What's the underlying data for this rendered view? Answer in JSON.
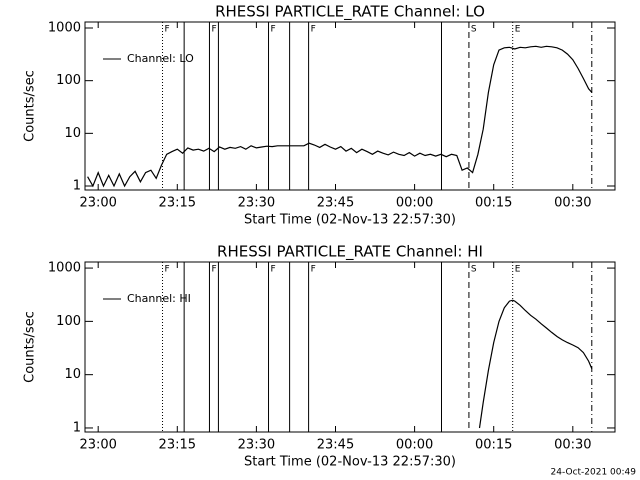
{
  "chart_data": [
    {
      "type": "line",
      "title": "RHESSI PARTICLE_RATE Channel: LO",
      "xlabel": "Start Time (02-Nov-13 22:57:30)",
      "ylabel": "Counts/sec",
      "log_y": true,
      "legend": "upper left",
      "xlim": [
        1377.5,
        1478
      ],
      "ylim": [
        0.84,
        1300
      ],
      "xticks": [
        {
          "value": 1380,
          "label": "23:00"
        },
        {
          "value": 1395,
          "label": "23:15"
        },
        {
          "value": 1410,
          "label": "23:30"
        },
        {
          "value": 1425,
          "label": "23:45"
        },
        {
          "value": 1440,
          "label": "00:00"
        },
        {
          "value": 1455,
          "label": "00:15"
        },
        {
          "value": 1470,
          "label": "00:30"
        }
      ],
      "yticks": [
        1,
        10,
        100,
        1000
      ],
      "vlines": [
        {
          "x": 1392.2,
          "style": "dotted",
          "label": "F"
        },
        {
          "x": 1396.3,
          "style": "solid"
        },
        {
          "x": 1401.1,
          "style": "solid",
          "label": "F"
        },
        {
          "x": 1402.8,
          "style": "solid"
        },
        {
          "x": 1412.3,
          "style": "solid",
          "label": "F"
        },
        {
          "x": 1416.3,
          "style": "solid"
        },
        {
          "x": 1419.9,
          "style": "solid",
          "label": "F"
        },
        {
          "x": 1445.1,
          "style": "solid"
        },
        {
          "x": 1450.3,
          "style": "dashed",
          "label": "S"
        },
        {
          "x": 1458.6,
          "style": "dotted",
          "label": "E"
        },
        {
          "x": 1473.6,
          "style": "dashdot"
        }
      ],
      "series": [
        {
          "name": "Channel: LO",
          "color": "#000000",
          "x": [
            1378,
            1379,
            1380,
            1381,
            1382,
            1383,
            1384,
            1385,
            1386,
            1387,
            1388,
            1389,
            1390,
            1391,
            1392,
            1393,
            1394,
            1395,
            1396,
            1397,
            1398,
            1399,
            1400,
            1401,
            1402,
            1403,
            1404,
            1405,
            1406,
            1407,
            1408,
            1409,
            1410,
            1411,
            1412,
            1413,
            1414,
            1415,
            1416,
            1417,
            1418,
            1419,
            1420,
            1421,
            1422,
            1423,
            1424,
            1425,
            1426,
            1427,
            1428,
            1429,
            1430,
            1431,
            1432,
            1433,
            1434,
            1435,
            1436,
            1437,
            1438,
            1439,
            1440,
            1441,
            1442,
            1443,
            1444,
            1445,
            1446,
            1447,
            1448,
            1449,
            1450,
            1451,
            1452,
            1453,
            1454,
            1455,
            1456,
            1457,
            1458,
            1459,
            1460,
            1461,
            1462,
            1463,
            1464,
            1465,
            1466,
            1467,
            1468,
            1469,
            1470,
            1471,
            1472,
            1473,
            1473.6
          ],
          "values": [
            1.5,
            1,
            1.8,
            1,
            1.6,
            1,
            1.7,
            1,
            1.5,
            1.9,
            1.2,
            1.8,
            2,
            1.4,
            2.5,
            4,
            4.5,
            5,
            4.2,
            5.3,
            4.8,
            5,
            4.6,
            5.2,
            4.5,
            5.5,
            5,
            5.4,
            5.2,
            5.6,
            5,
            5.8,
            5.3,
            5.5,
            5.7,
            5.6,
            5.8,
            5.8,
            5.8,
            5.8,
            5.8,
            5.8,
            6.5,
            6,
            5.4,
            6.2,
            5.5,
            5,
            5.6,
            4.6,
            5.2,
            4.3,
            5,
            4.5,
            4,
            4.6,
            4.2,
            3.9,
            4.4,
            4,
            3.8,
            4.3,
            3.7,
            4.2,
            3.8,
            4,
            3.7,
            4,
            3.6,
            4,
            3.8,
            2,
            2.2,
            1.8,
            4,
            12,
            60,
            200,
            380,
            420,
            430,
            400,
            430,
            420,
            440,
            450,
            430,
            450,
            440,
            420,
            380,
            320,
            250,
            170,
            110,
            70,
            60
          ]
        }
      ]
    },
    {
      "type": "line",
      "title": "RHESSI PARTICLE_RATE Channel: HI",
      "xlabel": "Start Time (02-Nov-13 22:57:30)",
      "ylabel": "Counts/sec",
      "log_y": true,
      "legend": "upper left",
      "xlim": [
        1377.5,
        1478
      ],
      "ylim": [
        0.84,
        1300
      ],
      "xticks": [
        {
          "value": 1380,
          "label": "23:00"
        },
        {
          "value": 1395,
          "label": "23:15"
        },
        {
          "value": 1410,
          "label": "23:30"
        },
        {
          "value": 1425,
          "label": "23:45"
        },
        {
          "value": 1440,
          "label": "00:00"
        },
        {
          "value": 1455,
          "label": "00:15"
        },
        {
          "value": 1470,
          "label": "00:30"
        }
      ],
      "yticks": [
        1,
        10,
        100,
        1000
      ],
      "vlines": [
        {
          "x": 1392.2,
          "style": "dotted",
          "label": "F"
        },
        {
          "x": 1396.3,
          "style": "solid"
        },
        {
          "x": 1401.1,
          "style": "solid",
          "label": "F"
        },
        {
          "x": 1402.8,
          "style": "solid"
        },
        {
          "x": 1412.3,
          "style": "solid",
          "label": "F"
        },
        {
          "x": 1416.3,
          "style": "solid"
        },
        {
          "x": 1419.9,
          "style": "solid",
          "label": "F"
        },
        {
          "x": 1445.1,
          "style": "solid"
        },
        {
          "x": 1450.3,
          "style": "dashed",
          "label": "S"
        },
        {
          "x": 1458.6,
          "style": "dotted",
          "label": "E"
        },
        {
          "x": 1473.6,
          "style": "dashdot"
        }
      ],
      "series": [
        {
          "name": "Channel: HI",
          "color": "#000000",
          "x": [
            1452.3,
            1453,
            1454,
            1455,
            1456,
            1457,
            1458,
            1458.6,
            1459,
            1460,
            1461,
            1462,
            1463,
            1464,
            1465,
            1466,
            1467,
            1468,
            1469,
            1470,
            1471,
            1472,
            1473,
            1473.6
          ],
          "values": [
            1,
            3,
            12,
            40,
            100,
            180,
            240,
            250,
            240,
            200,
            160,
            130,
            110,
            90,
            75,
            62,
            52,
            45,
            40,
            36,
            32,
            26,
            18,
            13
          ]
        }
      ]
    }
  ],
  "footer": "24-Oct-2021 00:49"
}
